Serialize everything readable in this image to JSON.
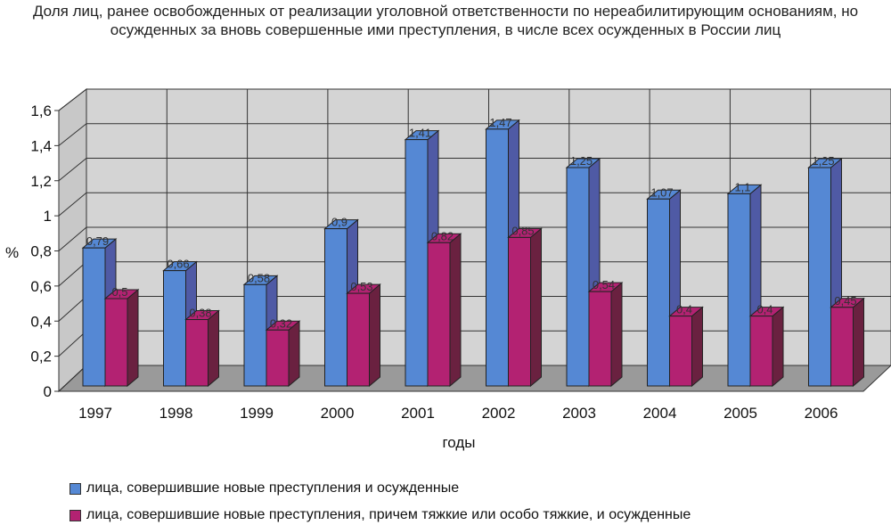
{
  "chart_data": {
    "type": "bar",
    "title": "Доля лиц, ранее освобожденных от реализации уголовной ответственности по нереабилитирующим основаниям, но осужденных за вновь совершенные ими преступления, в числе всех осужденных в России лиц",
    "xlabel": "годы",
    "ylabel": "%",
    "ylim": [
      0,
      1.6
    ],
    "yticks": [
      "0",
      "0,2",
      "0,4",
      "0,6",
      "0,8",
      "1",
      "1,2",
      "1,4",
      "1,6"
    ],
    "grid": true,
    "legend_position": "bottom",
    "categories": [
      "1997",
      "1998",
      "1999",
      "2000",
      "2001",
      "2002",
      "2003",
      "2004",
      "2005",
      "2006"
    ],
    "series": [
      {
        "name": "лица, совершившие новые преступления и осужденные",
        "color": "#5588d4",
        "values": [
          0.79,
          0.66,
          0.58,
          0.9,
          1.41,
          1.47,
          1.25,
          1.07,
          1.1,
          1.25
        ],
        "labels": [
          "0,79",
          "0,66",
          "0,58",
          "0,9",
          "1,41",
          "1,47",
          "1,25",
          "1,07",
          "1,1",
          "1,25"
        ]
      },
      {
        "name": "лица, совершившие новые преступления, причем тяжкие или особо тяжкие, и осужденные",
        "color": "#b32272",
        "values": [
          0.5,
          0.38,
          0.32,
          0.53,
          0.82,
          0.85,
          0.54,
          0.4,
          0.4,
          0.45
        ],
        "labels": [
          "0,5",
          "0,38",
          "0,32",
          "0,53",
          "0,82",
          "0,85",
          "0,54",
          "0,4",
          "0,4",
          "0,45"
        ]
      }
    ]
  }
}
